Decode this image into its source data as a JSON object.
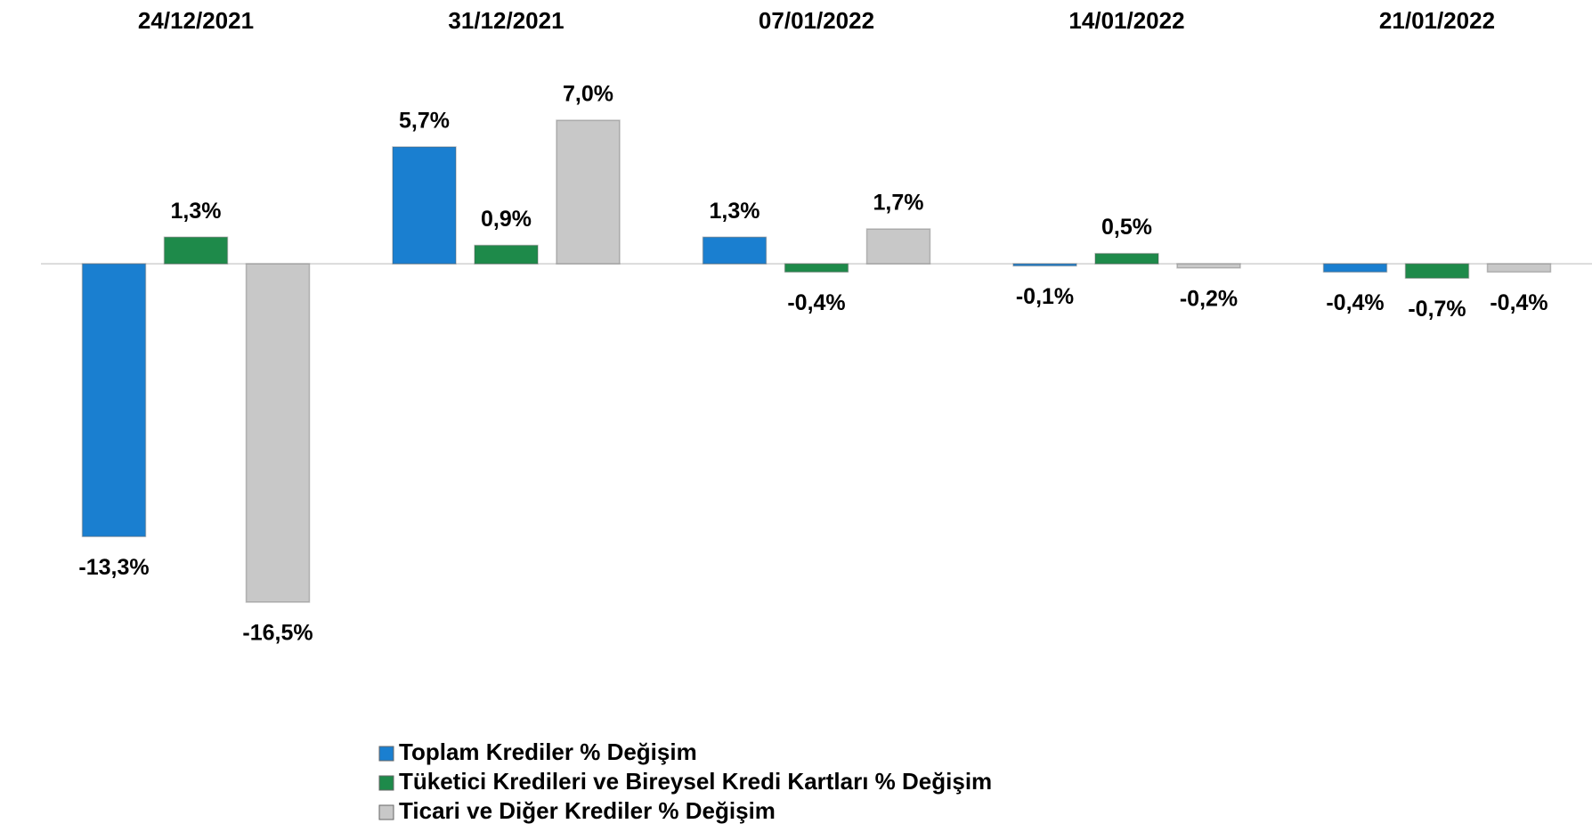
{
  "chart_data": {
    "type": "bar",
    "categories": [
      "24/12/2021",
      "31/12/2021",
      "07/01/2022",
      "14/01/2022",
      "21/01/2022"
    ],
    "series": [
      {
        "name": "Toplam Krediler % Değişim",
        "color": "#1a7fd0",
        "values": [
          -13.3,
          5.7,
          1.3,
          -0.1,
          -0.4
        ],
        "value_labels": [
          "-13,3%",
          "5,7%",
          "1,3%",
          "-0,1%",
          "-0,4%"
        ]
      },
      {
        "name": "Tüketici Kredileri ve Bireysel Kredi Kartları % Değişim",
        "color": "#1e8a4a",
        "values": [
          1.3,
          0.9,
          -0.4,
          0.5,
          -0.7
        ],
        "value_labels": [
          "1,3%",
          "0,9%",
          "-0,4%",
          "0,5%",
          "-0,7%"
        ]
      },
      {
        "name": "Ticari ve Diğer Krediler % Değişim",
        "color": "#c8c8c8",
        "values": [
          -16.5,
          7.0,
          1.7,
          -0.2,
          -0.4
        ],
        "value_labels": [
          "-16,5%",
          "7,0%",
          "1,7%",
          "-0,2%",
          "-0,4%"
        ]
      }
    ]
  }
}
